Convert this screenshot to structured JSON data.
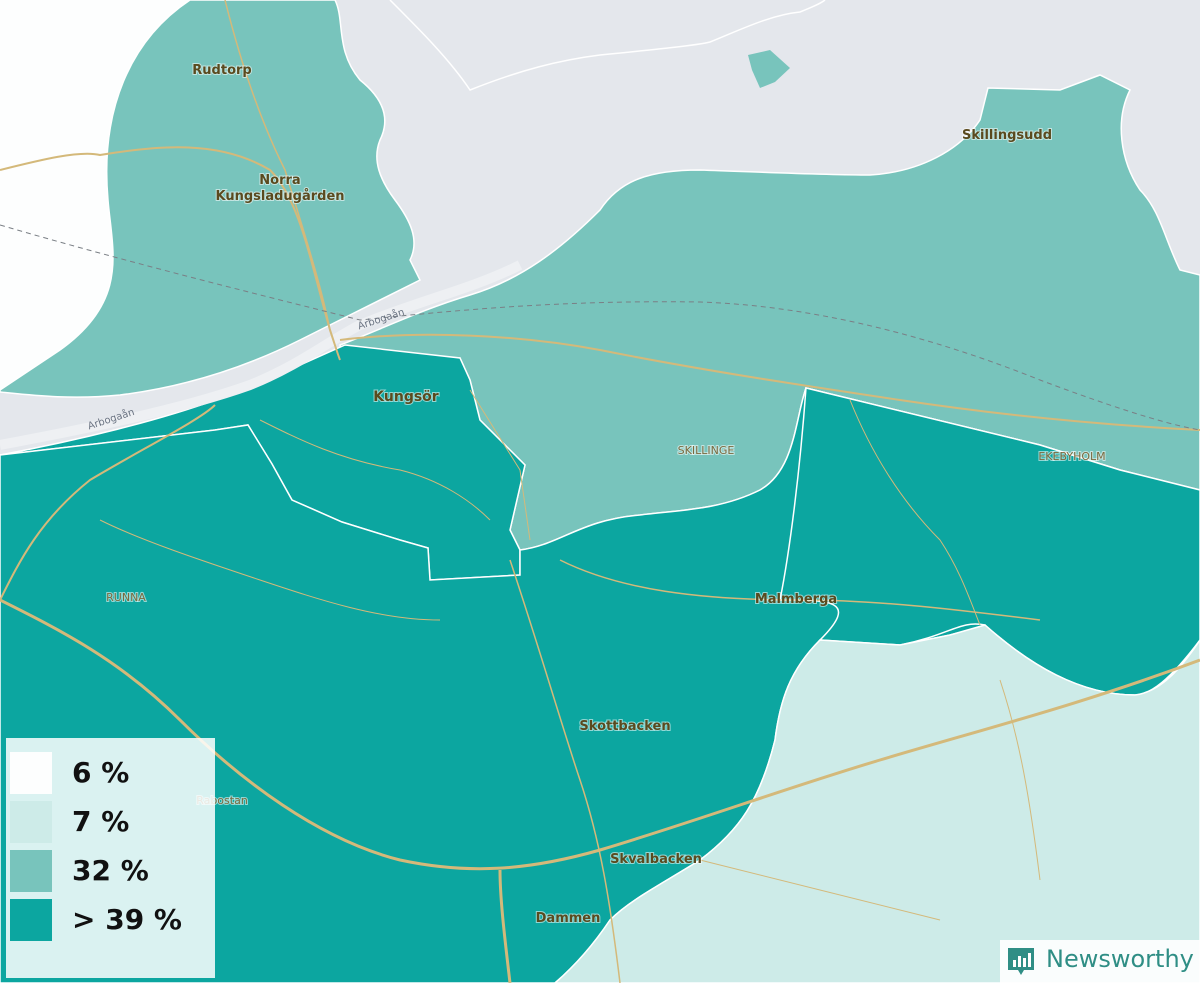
{
  "colors": {
    "water": "#e4e7ec",
    "bin_6": "#fdfefe",
    "bin_7": "#cdebe8",
    "bin_32": "#78c4bc",
    "bin_39": "#0ca6a0",
    "road": "#d4b97a",
    "border": "#ffffff"
  },
  "places": {
    "rudtorp": "Rudtorp",
    "norra_1": "Norra",
    "norra_2": "Kungsladugården",
    "skillingsudd": "Skillingsudd",
    "kungsor": "Kungsör",
    "skillinge": "SKILLINGE",
    "ekebyholm": "EKEBYHOLM",
    "runna": "RUNNA",
    "malmberga": "Malmberga",
    "skottbacken": "Skottbacken",
    "rabostan": "Rabostan",
    "skvalbacken": "Skvalbacken",
    "dammen": "Dammen",
    "arbogaan_1": "Arbogaån",
    "arbogaan_2": "Arbogaån"
  },
  "legend": [
    {
      "label": "6 %",
      "color": "#fdfefe"
    },
    {
      "label": "7 %",
      "color": "#cdebe8"
    },
    {
      "label": "32 %",
      "color": "#78c4bc"
    },
    {
      "label": "> 39 %",
      "color": "#0ca6a0"
    }
  ],
  "brand": {
    "name": "Newsworthy",
    "icon": "newsworthy-logo-icon"
  }
}
